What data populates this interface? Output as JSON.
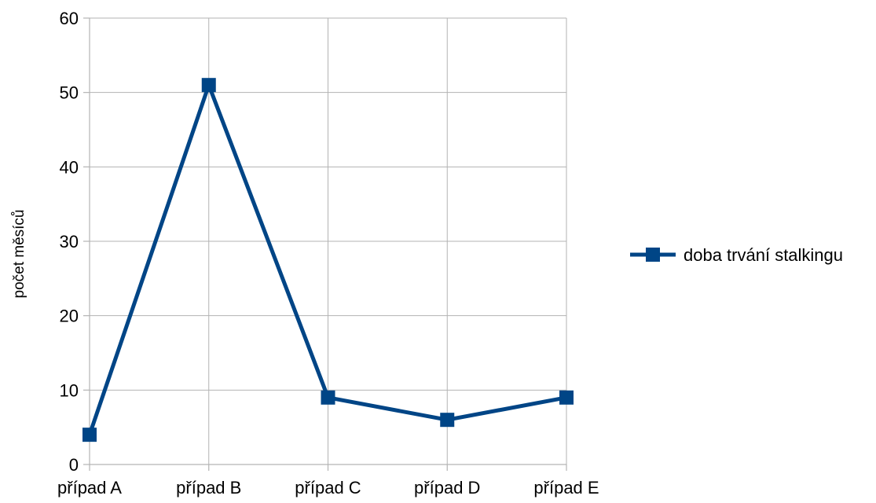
{
  "chart_data": {
    "type": "line",
    "categories": [
      "případ A",
      "případ B",
      "případ C",
      "případ D",
      "případ E"
    ],
    "series": [
      {
        "name": "doba trvání stalkingu",
        "values": [
          4,
          51,
          9,
          6,
          9
        ],
        "color": "#004586",
        "marker": "square"
      }
    ],
    "ylabel": "počet měsíců",
    "ylim": [
      0,
      60
    ],
    "yticks": [
      "0",
      "10",
      "20",
      "30",
      "40",
      "50",
      "60"
    ],
    "grid": {
      "horizontal": true,
      "vertical": true
    },
    "legend_position": "right"
  }
}
